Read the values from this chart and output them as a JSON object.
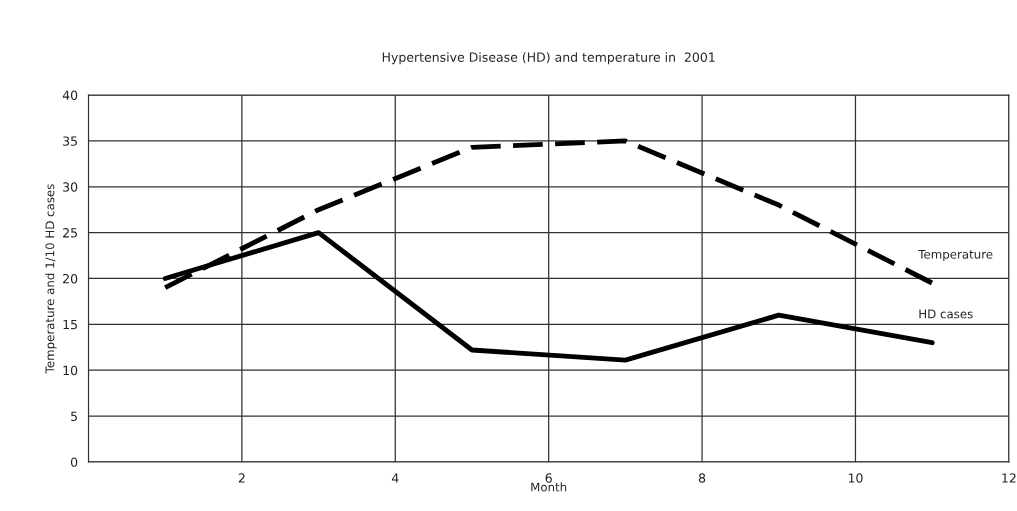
{
  "chart_data": {
    "type": "line",
    "title": "Hypertensive Disease (HD) and temperature in  2001",
    "xlabel": "Month",
    "ylabel": "Temperature and 1/10 HD cases",
    "x": [
      1,
      3,
      5,
      7,
      9,
      11
    ],
    "series": [
      {
        "name": "Temperature",
        "color": "#000000",
        "line_style": "dashed",
        "values": [
          19,
          27.5,
          34.3,
          35,
          28,
          19.5
        ]
      },
      {
        "name": "HD cases",
        "color": "#000000",
        "line_style": "solid",
        "values": [
          20,
          25,
          12.2,
          11.1,
          16,
          13
        ]
      }
    ],
    "xlim": [
      0,
      12
    ],
    "xticks": [
      {
        "value": 0,
        "label": null
      },
      2,
      4,
      6,
      8,
      10,
      12
    ],
    "ylim": [
      0,
      40
    ],
    "yticks": [
      0,
      5,
      10,
      15,
      20,
      25,
      30,
      35,
      40
    ],
    "grid": true,
    "legend": false,
    "marker": "none"
  }
}
